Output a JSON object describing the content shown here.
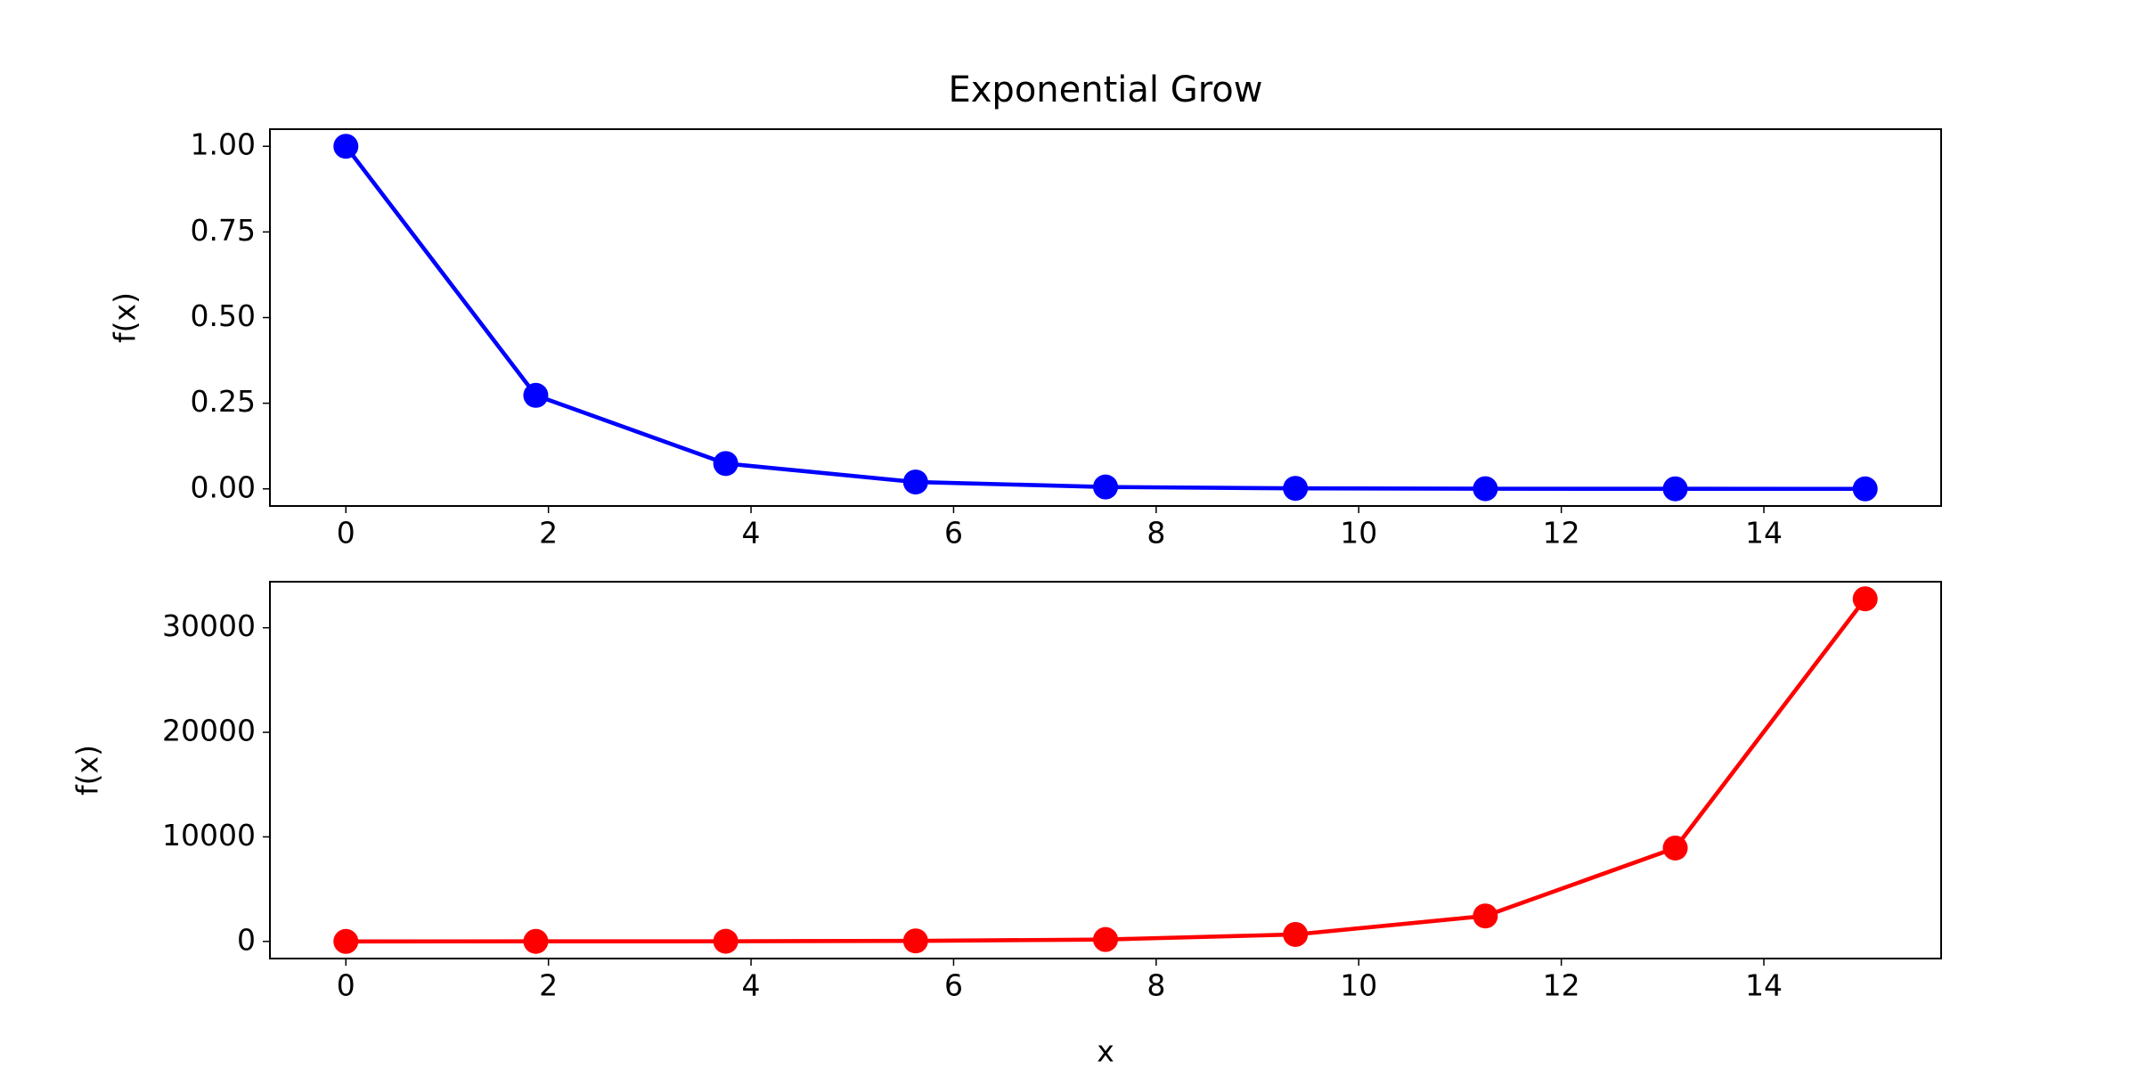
{
  "chart_data": [
    {
      "type": "line",
      "title": "Exponential Grow",
      "y_label": "f(x)",
      "x": [
        0,
        1.875,
        3.75,
        5.625,
        7.5,
        9.375,
        11.25,
        13.125,
        15
      ],
      "series": [
        {
          "color": "#0000ff",
          "values": [
            1,
            0.273,
            0.074,
            0.02,
            0.0055,
            0.0015,
            0.0004,
            0.0001,
            3e-05
          ]
        }
      ],
      "xlim": [
        -0.75,
        15.75
      ],
      "xticks": [
        0,
        2,
        4,
        6,
        8,
        10,
        12,
        14
      ],
      "ylim": [
        -0.05,
        1.05
      ],
      "yticks": [
        {
          "value": 0,
          "label": "0.00"
        },
        {
          "value": 0.25,
          "label": "0.25"
        },
        {
          "value": 0.5,
          "label": "0.50"
        },
        {
          "value": 0.75,
          "label": "0.75"
        },
        {
          "value": 1,
          "label": "1.00"
        }
      ]
    },
    {
      "type": "line",
      "x_label": "x",
      "y_label": "f(x)",
      "x": [
        0,
        1.875,
        3.75,
        5.625,
        7.5,
        9.375,
        11.25,
        13.125,
        15
      ],
      "series": [
        {
          "color": "#ff0000",
          "values": [
            1,
            3.7,
            13,
            49,
            181,
            664,
            2435,
            8933,
            32768
          ]
        }
      ],
      "xlim": [
        -0.75,
        15.75
      ],
      "xticks": [
        0,
        2,
        4,
        6,
        8,
        10,
        12,
        14
      ],
      "ylim": [
        -1638,
        34406
      ],
      "yticks": [
        0,
        10000,
        20000,
        30000
      ]
    }
  ]
}
